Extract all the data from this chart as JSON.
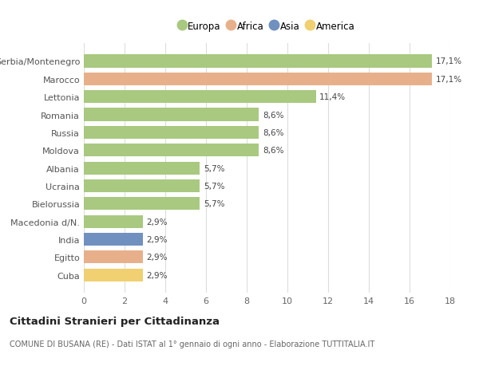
{
  "countries": [
    "Serbia/Montenegro",
    "Marocco",
    "Lettonia",
    "Romania",
    "Russia",
    "Moldova",
    "Albania",
    "Ucraina",
    "Bielorussia",
    "Macedonia d/N.",
    "India",
    "Egitto",
    "Cuba"
  ],
  "values": [
    17.1,
    17.1,
    11.4,
    8.6,
    8.6,
    8.6,
    5.7,
    5.7,
    5.7,
    2.9,
    2.9,
    2.9,
    2.9
  ],
  "labels": [
    "17,1%",
    "17,1%",
    "11,4%",
    "8,6%",
    "8,6%",
    "8,6%",
    "5,7%",
    "5,7%",
    "5,7%",
    "2,9%",
    "2,9%",
    "2,9%",
    "2,9%"
  ],
  "continents": [
    "Europa",
    "Africa",
    "Europa",
    "Europa",
    "Europa",
    "Europa",
    "Europa",
    "Europa",
    "Europa",
    "Europa",
    "Asia",
    "Africa",
    "America"
  ],
  "colors": {
    "Europa": "#a8c97f",
    "Africa": "#e8b08a",
    "Asia": "#7090c0",
    "America": "#f0d070"
  },
  "legend_order": [
    "Europa",
    "Africa",
    "Asia",
    "America"
  ],
  "title": "Cittadini Stranieri per Cittadinanza",
  "subtitle": "COMUNE DI BUSANA (RE) - Dati ISTAT al 1° gennaio di ogni anno - Elaborazione TUTTITALIA.IT",
  "xlim": [
    0,
    18
  ],
  "xticks": [
    0,
    2,
    4,
    6,
    8,
    10,
    12,
    14,
    16,
    18
  ],
  "background_color": "#ffffff",
  "grid_color": "#dddddd",
  "bar_height": 0.72
}
